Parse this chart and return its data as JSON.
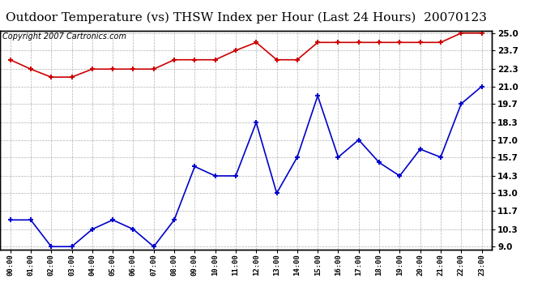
{
  "title": "Outdoor Temperature (vs) THSW Index per Hour (Last 24 Hours)  20070123",
  "copyright": "Copyright 2007 Cartronics.com",
  "x_labels": [
    "00:00",
    "01:00",
    "02:00",
    "03:00",
    "04:00",
    "05:00",
    "06:00",
    "07:00",
    "08:00",
    "09:00",
    "10:00",
    "11:00",
    "12:00",
    "13:00",
    "14:00",
    "15:00",
    "16:00",
    "17:00",
    "18:00",
    "19:00",
    "20:00",
    "21:00",
    "22:00",
    "23:00"
  ],
  "temp_data": [
    23.0,
    22.3,
    21.7,
    21.7,
    22.3,
    22.3,
    22.3,
    22.3,
    23.0,
    23.0,
    23.0,
    23.7,
    24.3,
    23.0,
    23.0,
    24.3,
    24.3,
    24.3,
    24.3,
    24.3,
    24.3,
    24.3,
    25.0,
    25.0
  ],
  "thsw_data": [
    11.0,
    11.0,
    9.0,
    9.0,
    10.3,
    11.0,
    10.3,
    9.0,
    11.0,
    15.0,
    14.3,
    14.3,
    18.3,
    13.0,
    15.7,
    20.3,
    15.7,
    17.0,
    15.3,
    14.3,
    16.3,
    15.7,
    19.7,
    21.0
  ],
  "y_ticks": [
    9.0,
    10.3,
    11.7,
    13.0,
    14.3,
    15.7,
    17.0,
    18.3,
    19.7,
    21.0,
    22.3,
    23.7,
    25.0
  ],
  "y_min": 9.0,
  "y_max": 25.0,
  "temp_color": "#cc0000",
  "thsw_color": "#0000cc",
  "bg_color": "#ffffff",
  "plot_bg_color": "#ffffff",
  "grid_color": "#b0b0b0",
  "title_fontsize": 11,
  "copyright_fontsize": 7
}
